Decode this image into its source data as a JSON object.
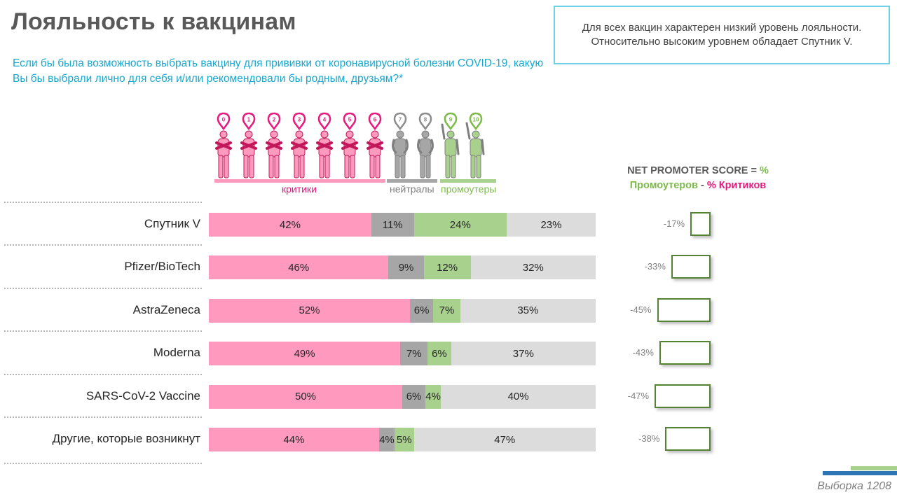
{
  "title": "Лояльность к вакцинам",
  "question": "Если бы была возможность выбрать вакцину для прививки от коронавирусной болезни COVID-19, какую Вы бы выбрали лично для себя и/или рекомендовали бы родным, друзьям?*",
  "callout": {
    "line1": "Для всех вакцин характерен низкий уровень лояльности.",
    "line2": "Относительно высоким уровнем обладает  Спутник V."
  },
  "nps_formula": {
    "part1": "NET PROMOTER SCORE = ",
    "pct1": "%",
    "promoters": "Промоутеров",
    "dash": " - ",
    "critics": "% Критиков"
  },
  "scale": {
    "scores": [
      "0",
      "1",
      "2",
      "3",
      "4",
      "5",
      "6",
      "7",
      "8",
      "9",
      "10"
    ],
    "critics_label": "критики",
    "neutrals_label": "нейтралы",
    "promoters_label": "промоутеры"
  },
  "colors": {
    "critics": "#ff99bd",
    "neutrals": "#a6a6a6",
    "promoters": "#a9d18e",
    "remainder": "#dcdcdc",
    "accent_text": "#17a7cf",
    "nps_box_border": "#548235"
  },
  "sample": "Выборка 1208",
  "chart_data": {
    "type": "bar",
    "orientation": "horizontal",
    "stacked": true,
    "categories": [
      "Спутник V",
      "Pfizer/BioTech",
      "AstraZeneca",
      "Moderna",
      "SARS-CoV-2 Vaccine",
      "Другие, которые возникнут"
    ],
    "series": [
      {
        "name": "критики",
        "values": [
          42,
          46,
          52,
          49,
          50,
          44
        ],
        "labels": [
          "42%",
          "46%",
          "52%",
          "49%",
          "50%",
          "44%"
        ]
      },
      {
        "name": "нейтралы",
        "values": [
          11,
          9,
          6,
          7,
          6,
          4
        ],
        "labels": [
          "11%",
          "9%",
          "6%",
          "7%",
          "6%",
          "4%"
        ]
      },
      {
        "name": "промоутеры",
        "values": [
          24,
          12,
          7,
          6,
          4,
          5
        ],
        "labels": [
          "24%",
          "12%",
          "7%",
          "6%",
          "4%",
          "5%"
        ]
      },
      {
        "values": [
          23,
          32,
          35,
          37,
          40,
          47
        ],
        "labels": [
          "23%",
          "32%",
          "35%",
          "37%",
          "40%",
          "47%"
        ]
      }
    ],
    "nps": {
      "values": [
        -17,
        -33,
        -45,
        -43,
        -47,
        -38
      ],
      "labels": [
        "-17%",
        "-33%",
        "-45%",
        "-43%",
        "-47%",
        "-38%"
      ]
    },
    "xlim": [
      0,
      100
    ],
    "legend": "top"
  }
}
